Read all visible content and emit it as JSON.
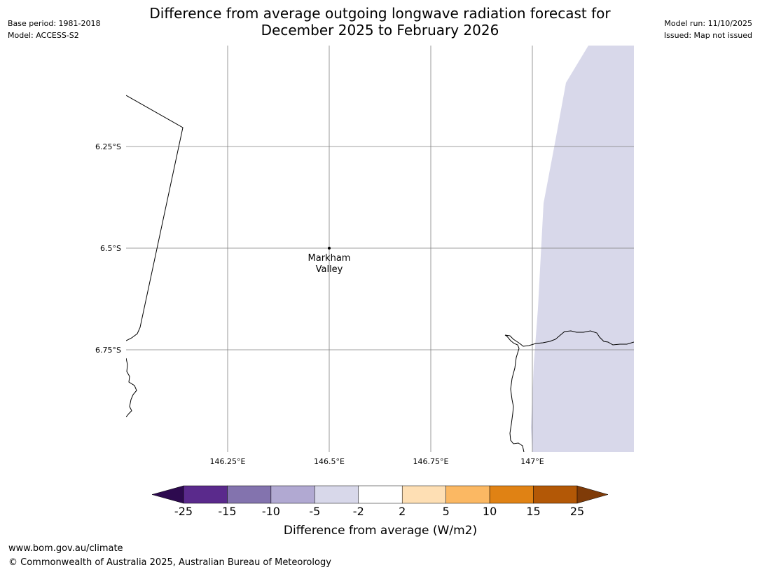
{
  "header": {
    "title_line1": "Difference from average outgoing longwave radiation forecast for",
    "title_line2": "December 2025 to February 2026",
    "base_period": "Base period: 1981-2018",
    "model": "Model: ACCESS-S2",
    "model_run": "Model run: 11/10/2025",
    "issued": "Issued: Map not issued"
  },
  "map": {
    "lat_labels": [
      "6.25°S",
      "6.5°S",
      "6.75°S"
    ],
    "lon_labels": [
      "146.25°E",
      "146.5°E",
      "146.75°E",
      "147°E"
    ],
    "place": {
      "name_line1": "Markham",
      "name_line2": "Valley",
      "lat": -6.5,
      "lon": 146.5
    },
    "shaded_region_category": "-5 to -2",
    "shaded_region_color": "#d8d8ea",
    "gridline_color": "#808080",
    "coastline_color": "#000000"
  },
  "legend": {
    "title": "Difference from average (W/m2)",
    "tick_labels": [
      "-25",
      "-15",
      "-10",
      "-5",
      "-2",
      "2",
      "5",
      "10",
      "15",
      "25"
    ],
    "under_color": "#2d0a4f",
    "colors": [
      "#5a2a8c",
      "#8373ae",
      "#b1a9d2",
      "#d8d8ea",
      "#ffffff",
      "#fedfb4",
      "#fbb863",
      "#e08214",
      "#b35806"
    ],
    "over_color": "#7f3b08"
  },
  "footer": {
    "url": "www.bom.gov.au/climate",
    "copyright": "© Commonwealth of Australia 2025, Australian Bureau of Meteorology"
  }
}
